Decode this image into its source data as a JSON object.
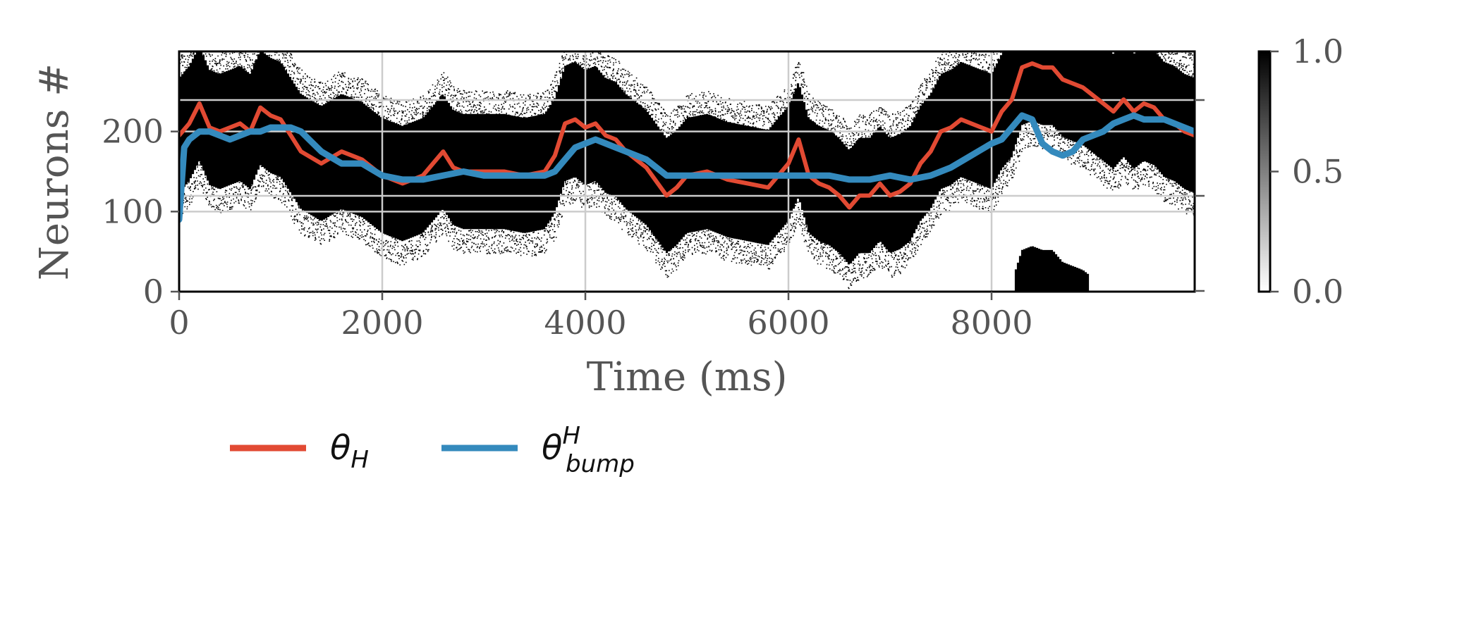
{
  "chart_data": {
    "type": "line",
    "xlabel": "Time (ms)",
    "ylabel": "Neurons #",
    "xlim": [
      0,
      10000
    ],
    "ylim": [
      0,
      300
    ],
    "x_ticks": [
      0,
      2000,
      4000,
      6000,
      8000
    ],
    "x_tick_labels": [
      "0",
      "2000",
      "4000",
      "6000",
      "8000"
    ],
    "y_ticks": [
      0,
      100,
      200
    ],
    "y_tick_labels": [
      "0",
      "100",
      "200"
    ],
    "grid": true,
    "background": "raster of spiking activity (black dots on white)",
    "colorbar": {
      "colormap": "greys",
      "range": [
        0.0,
        1.0
      ],
      "ticks": [
        0.0,
        0.5,
        1.0
      ],
      "tick_labels": [
        "0.0",
        "0.5",
        "1.0"
      ]
    },
    "legend": {
      "placement": "below",
      "entries": [
        {
          "base": "θ",
          "sub": "H",
          "sup": ""
        },
        {
          "base": "θ",
          "sub": "bump",
          "sup": "H"
        }
      ]
    },
    "series": [
      {
        "color": "#e24a33",
        "x": [
          0,
          100,
          200,
          300,
          400,
          500,
          600,
          700,
          800,
          900,
          1000,
          1100,
          1200,
          1400,
          1600,
          1800,
          2000,
          2200,
          2400,
          2500,
          2600,
          2700,
          2800,
          3000,
          3200,
          3400,
          3600,
          3700,
          3800,
          3900,
          4000,
          4100,
          4200,
          4300,
          4400,
          4600,
          4800,
          4900,
          5000,
          5200,
          5400,
          5600,
          5800,
          6000,
          6100,
          6200,
          6300,
          6400,
          6500,
          6600,
          6700,
          6800,
          6900,
          7000,
          7100,
          7200,
          7300,
          7400,
          7500,
          7600,
          7700,
          7800,
          7900,
          8000,
          8100,
          8200,
          8300,
          8400,
          8500,
          8600,
          8700,
          8800,
          8900,
          9000,
          9100,
          9200,
          9300,
          9400,
          9500,
          9600,
          9700,
          9800,
          9900,
          10000
        ],
        "y": [
          195,
          210,
          235,
          205,
          200,
          205,
          210,
          200,
          230,
          220,
          215,
          195,
          175,
          160,
          175,
          165,
          145,
          135,
          145,
          160,
          175,
          155,
          150,
          150,
          150,
          145,
          150,
          170,
          210,
          215,
          205,
          210,
          195,
          190,
          175,
          155,
          120,
          130,
          145,
          150,
          140,
          135,
          130,
          160,
          190,
          145,
          135,
          130,
          120,
          105,
          120,
          120,
          135,
          120,
          125,
          135,
          160,
          175,
          200,
          205,
          215,
          210,
          205,
          200,
          225,
          240,
          280,
          285,
          280,
          280,
          265,
          260,
          255,
          245,
          235,
          225,
          240,
          225,
          235,
          230,
          215,
          210,
          200,
          195
        ]
      },
      {
        "color": "#348abd",
        "x": [
          0,
          50,
          100,
          200,
          300,
          400,
          500,
          600,
          700,
          800,
          900,
          1000,
          1100,
          1200,
          1400,
          1600,
          1800,
          2000,
          2200,
          2400,
          2600,
          2800,
          3000,
          3200,
          3400,
          3600,
          3700,
          3800,
          3900,
          4000,
          4100,
          4200,
          4300,
          4400,
          4600,
          4800,
          5000,
          5200,
          5400,
          5600,
          5800,
          6000,
          6200,
          6400,
          6600,
          6800,
          7000,
          7200,
          7400,
          7600,
          7800,
          8000,
          8100,
          8200,
          8300,
          8400,
          8500,
          8600,
          8700,
          8800,
          8900,
          9000,
          9100,
          9200,
          9300,
          9400,
          9500,
          9600,
          9700,
          9800,
          9900,
          10000
        ],
        "y": [
          90,
          180,
          190,
          200,
          200,
          195,
          190,
          195,
          200,
          200,
          205,
          205,
          205,
          200,
          175,
          160,
          160,
          145,
          140,
          140,
          145,
          150,
          145,
          145,
          145,
          145,
          150,
          165,
          180,
          185,
          190,
          185,
          180,
          175,
          165,
          145,
          145,
          145,
          145,
          145,
          145,
          145,
          145,
          145,
          140,
          140,
          145,
          140,
          145,
          155,
          170,
          185,
          190,
          205,
          220,
          215,
          185,
          175,
          170,
          175,
          190,
          195,
          200,
          210,
          215,
          220,
          215,
          215,
          215,
          210,
          205,
          200
        ]
      }
    ]
  }
}
